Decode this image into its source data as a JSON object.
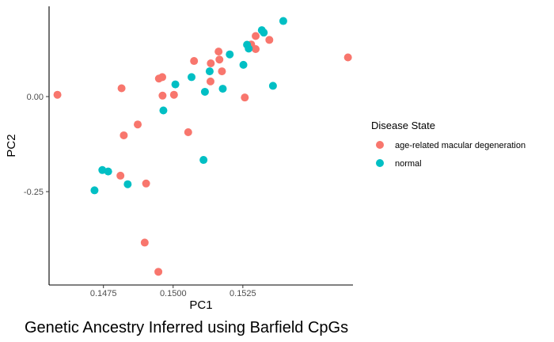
{
  "chart_data": {
    "type": "scatter",
    "title": "Genetic Ancestry Inferred using Barfield CpGs",
    "xlabel": "PC1",
    "ylabel": "PC2",
    "xlim": [
      0.14555,
      0.15645
    ],
    "ylim": [
      -0.4956,
      0.2374
    ],
    "xticks": [
      0.1475,
      0.15,
      0.1525
    ],
    "xtick_labels": [
      "0.1475",
      "0.1500",
      "0.1525"
    ],
    "yticks": [
      -0.25,
      0.0
    ],
    "ytick_labels": [
      "-0.25",
      "0.00"
    ],
    "grid": false,
    "legend": {
      "title": "Disease State",
      "placement": "right"
    },
    "series": [
      {
        "name": "age-related macular degeneration",
        "color": "#F8766D",
        "points": [
          [
            0.14585,
            0.0048
          ],
          [
            0.14815,
            0.0219
          ],
          [
            0.14823,
            -0.1019
          ],
          [
            0.14873,
            -0.0733
          ],
          [
            0.14811,
            -0.2081
          ],
          [
            0.14903,
            -0.2286
          ],
          [
            0.14898,
            -0.384
          ],
          [
            0.14947,
            -0.4609
          ],
          [
            0.14949,
            0.0474
          ],
          [
            0.14961,
            0.0512
          ],
          [
            0.14962,
            0.0025
          ],
          [
            0.15003,
            0.0048
          ],
          [
            0.15054,
            -0.0937
          ],
          [
            0.15075,
            0.0936
          ],
          [
            0.15135,
            0.0875
          ],
          [
            0.15134,
            0.0398
          ],
          [
            0.15163,
            0.1184
          ],
          [
            0.15166,
            0.0974
          ],
          [
            0.15175,
            0.0665
          ],
          [
            0.15257,
            -0.0024
          ],
          [
            0.1528,
            0.137
          ],
          [
            0.15296,
            0.1593
          ],
          [
            0.15296,
            0.1249
          ],
          [
            0.15345,
            0.1491
          ],
          [
            0.15627,
            0.1031
          ]
        ]
      },
      {
        "name": "normal",
        "color": "#00BFC4",
        "points": [
          [
            0.14718,
            -0.2466
          ],
          [
            0.14746,
            -0.1932
          ],
          [
            0.14767,
            -0.197
          ],
          [
            0.14837,
            -0.2305
          ],
          [
            0.14965,
            -0.0364
          ],
          [
            0.15008,
            0.0321
          ],
          [
            0.15066,
            0.0512
          ],
          [
            0.15109,
            -0.1667
          ],
          [
            0.15114,
            0.0126
          ],
          [
            0.15131,
            0.0665
          ],
          [
            0.15178,
            0.0207
          ],
          [
            0.15203,
            0.111
          ],
          [
            0.15252,
            0.0836
          ],
          [
            0.15265,
            0.1364
          ],
          [
            0.15271,
            0.1262
          ],
          [
            0.15318,
            0.1746
          ],
          [
            0.15325,
            0.1683
          ],
          [
            0.15358,
            0.0283
          ],
          [
            0.15395,
            0.1988
          ]
        ]
      }
    ]
  }
}
